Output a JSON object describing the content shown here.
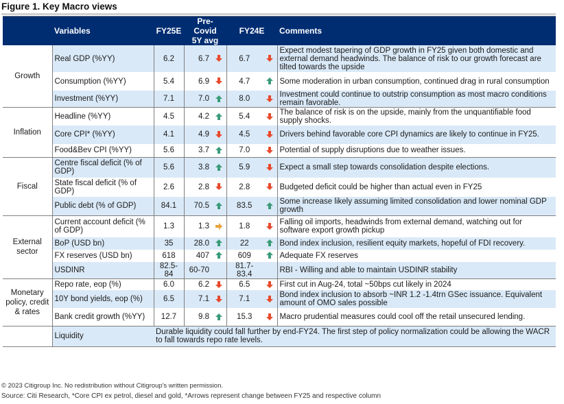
{
  "title": "Figure 1. Key Macro views",
  "headers": {
    "variables": "Variables",
    "fy25e": "FY25E",
    "precovid_line1": "Pre-Covid",
    "precovid_line2": "5Y avg",
    "fy24e": "FY24E",
    "comments": "Comments"
  },
  "colors": {
    "header_bg": "#002d72",
    "band": "#dae9f7",
    "arrow_down": "#e8492c",
    "arrow_up": "#3a9b79",
    "arrow_right": "#e8a33a"
  },
  "groups": [
    {
      "name": "Growth",
      "rows": [
        {
          "var": "Real GDP (%YY)",
          "fy25e": "6.2",
          "pre": "6.7",
          "pre_arrow": "down",
          "fy24e": "6.7",
          "fy24_arrow": "down",
          "comment": "Expect modest tapering of GDP growth in FY25 given both domestic and external demand headwinds. The balance of risk to our growth forecast are tilted towards the upside"
        },
        {
          "var": "Consumption (%YY)",
          "fy25e": "5.4",
          "pre": "6.9",
          "pre_arrow": "down",
          "fy24e": "4.7",
          "fy24_arrow": "up",
          "comment": "Some moderation in urban consumption, continued drag in rural consumption"
        },
        {
          "var": "Investment (%YY)",
          "fy25e": "7.1",
          "pre": "7.0",
          "pre_arrow": "up",
          "fy24e": "8.0",
          "fy24_arrow": "down",
          "comment": "Investment could continue to outstrip consumption as most macro conditions remain favorable."
        }
      ]
    },
    {
      "name": "Inflation",
      "rows": [
        {
          "var": "Headline (%YY)",
          "fy25e": "4.5",
          "pre": "4.2",
          "pre_arrow": "up",
          "fy24e": "5.4",
          "fy24_arrow": "down",
          "comment": "The balance of risk is on the upside, mainly from the unquantifiable food supply shocks."
        },
        {
          "var": "Core CPI* (%YY)",
          "fy25e": "4.1",
          "pre": "4.9",
          "pre_arrow": "down",
          "fy24e": "4.5",
          "fy24_arrow": "down",
          "comment": "Drivers behind favorable core CPI dynamics are likely to continue in FY25."
        },
        {
          "var": "Food&Bev CPI (%YY)",
          "fy25e": "5.6",
          "pre": "3.7",
          "pre_arrow": "up",
          "fy24e": "7.0",
          "fy24_arrow": "down",
          "comment": "Potential of supply disruptions due to weather issues."
        }
      ]
    },
    {
      "name": "Fiscal",
      "rows": [
        {
          "var": "Centre fiscal deficit (% of GDP)",
          "fy25e": "5.6",
          "pre": "3.8",
          "pre_arrow": "up",
          "fy24e": "5.9",
          "fy24_arrow": "down",
          "comment": "Expect a small step towards consolidation despite elections."
        },
        {
          "var": "State fiscal deficit (% of GDP)",
          "fy25e": "2.6",
          "pre": "2.8",
          "pre_arrow": "down",
          "fy24e": "2.8",
          "fy24_arrow": "down",
          "comment": "Budgeted deficit could be higher than actual even in FY25"
        },
        {
          "var": "Public debt (% of GDP)",
          "fy25e": "84.1",
          "pre": "70.5",
          "pre_arrow": "up",
          "fy24e": "83.5",
          "fy24_arrow": "up",
          "comment": "Some increase likely assuming limited consolidation and lower nominal GDP growth"
        }
      ]
    },
    {
      "name": "External sector",
      "rows": [
        {
          "var": "Current account deficit (% of GDP)",
          "fy25e": "1.3",
          "pre": "1.3",
          "pre_arrow": "right",
          "fy24e": "1.8",
          "fy24_arrow": "down",
          "comment": "Falling oil imports, headwinds from external demand, watching out for software export growth pickup"
        },
        {
          "var": "BoP (USD bn)",
          "fy25e": "35",
          "pre": "28.0",
          "pre_arrow": "up",
          "fy24e": "22",
          "fy24_arrow": "up",
          "comment": "Bond index inclusion, resilient equity markets, hopeful of FDI recovery."
        },
        {
          "var": "FX reserves (USD bn)",
          "fy25e": "618",
          "pre": "407",
          "pre_arrow": "up",
          "fy24e": "609",
          "fy24_arrow": "up",
          "comment": "Adequate FX reserves"
        },
        {
          "var": "USDINR",
          "fy25e": "82.5-84",
          "pre": "60-70",
          "pre_arrow": "",
          "fy24e": "81.7-83.4",
          "fy24_arrow": "",
          "comment": "RBI - Willing and able to maintain USDINR stability"
        }
      ]
    },
    {
      "name": "Monetary policy, credit & rates",
      "rows": [
        {
          "var": "Repo rate, eop (%)",
          "fy25e": "6.0",
          "pre": "6.2",
          "pre_arrow": "down",
          "fy24e": "6.5",
          "fy24_arrow": "down",
          "comment": "First cut in Aug-24, total ~50bps cut likely in 2024"
        },
        {
          "var": "10Y bond yields, eop (%)",
          "fy25e": "6.5",
          "pre": "7.1",
          "pre_arrow": "down",
          "fy24e": "7.1",
          "fy24_arrow": "down",
          "comment": "Bond index inclusion to absorb ~INR 1.2 -1.4trn GSec issuance. Equivalent amount of OMO sales possible"
        },
        {
          "var": "Bank credit growth (%YY)",
          "fy25e": "12.7",
          "pre": "9.8",
          "pre_arrow": "up",
          "fy24e": "15.3",
          "fy24_arrow": "down",
          "comment": "Macro prudential measures could cool off the retail unsecured lending."
        }
      ]
    }
  ],
  "liquidity": {
    "var": "Liquidity",
    "comment": "Durable liquidity could fall further by end-FY24. The first step of policy normalization could be allowing the WACR to fall towards repo rate levels."
  },
  "footer": {
    "copyright": "© 2023 Citigroup Inc. No redistribution without Citigroup's written permission.",
    "source": "Source: Citi Research, *Core CPI ex petrol, diesel and gold, *Arrows represent change between FY25 and respective column"
  }
}
